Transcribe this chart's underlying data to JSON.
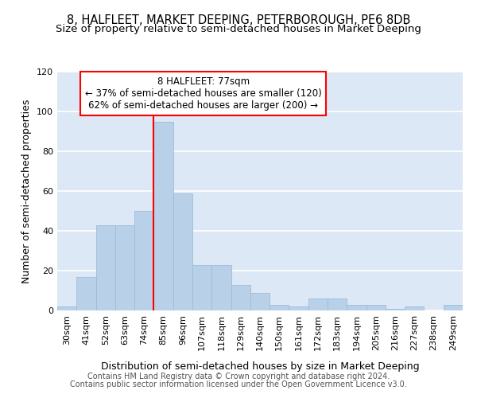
{
  "title": "8, HALFLEET, MARKET DEEPING, PETERBOROUGH, PE6 8DB",
  "subtitle": "Size of property relative to semi-detached houses in Market Deeping",
  "xlabel": "Distribution of semi-detached houses by size in Market Deeping",
  "ylabel": "Number of semi-detached properties",
  "categories": [
    "30sqm",
    "41sqm",
    "52sqm",
    "63sqm",
    "74sqm",
    "85sqm",
    "96sqm",
    "107sqm",
    "118sqm",
    "129sqm",
    "140sqm",
    "150sqm",
    "161sqm",
    "172sqm",
    "183sqm",
    "194sqm",
    "205sqm",
    "216sqm",
    "227sqm",
    "238sqm",
    "249sqm"
  ],
  "values": [
    2,
    17,
    43,
    43,
    50,
    95,
    59,
    23,
    23,
    13,
    9,
    3,
    2,
    6,
    6,
    3,
    3,
    1,
    2,
    0,
    3
  ],
  "bar_color": "#b8d0e8",
  "bar_edge_color": "#a0bcd8",
  "annotation_text_line1": "8 HALFLEET: 77sqm",
  "annotation_text_line2": "← 37% of semi-detached houses are smaller (120)",
  "annotation_text_line3": "62% of semi-detached houses are larger (200) →",
  "ylim": [
    0,
    120
  ],
  "yticks": [
    0,
    20,
    40,
    60,
    80,
    100,
    120
  ],
  "footer_line1": "Contains HM Land Registry data © Crown copyright and database right 2024.",
  "footer_line2": "Contains public sector information licensed under the Open Government Licence v3.0.",
  "fig_bg_color": "#ffffff",
  "plot_bg_color": "#dce8f5",
  "grid_color": "#ffffff",
  "title_fontsize": 10.5,
  "subtitle_fontsize": 9.5,
  "axis_label_fontsize": 9,
  "tick_fontsize": 8,
  "annot_fontsize": 8.5,
  "footer_fontsize": 7
}
